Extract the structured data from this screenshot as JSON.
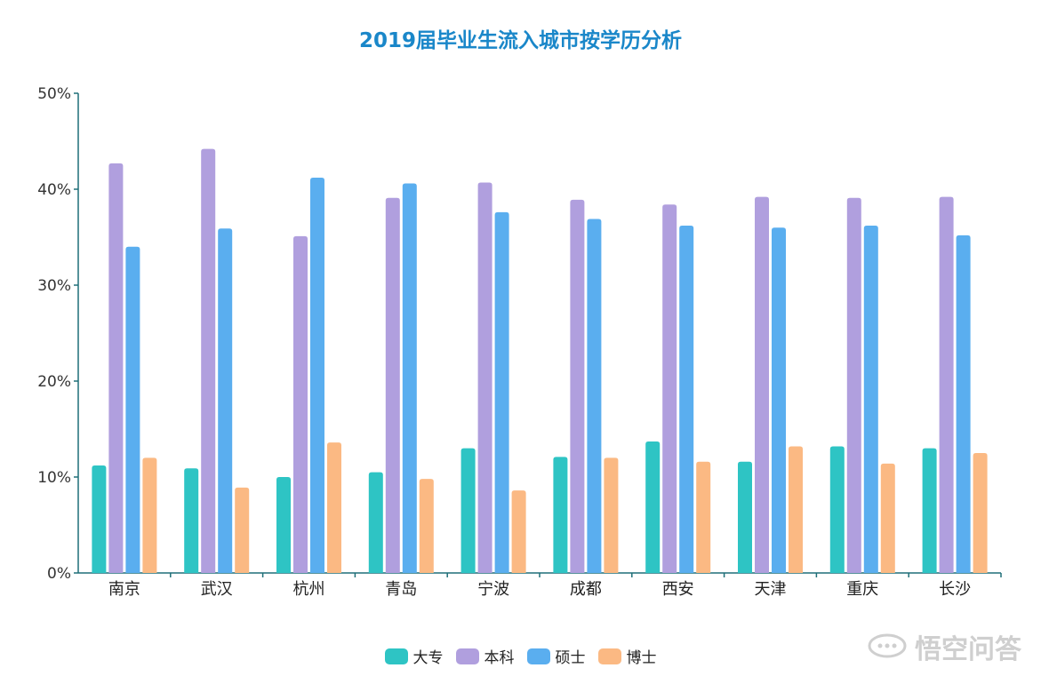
{
  "chart_data": {
    "type": "bar",
    "title": "2019届毕业生流入城市按学历分析",
    "categories": [
      "南京",
      "武汉",
      "杭州",
      "青岛",
      "宁波",
      "成都",
      "西安",
      "天津",
      "重庆",
      "长沙"
    ],
    "series": [
      {
        "name": "大专",
        "color": "#2ec4c4",
        "values": [
          11.2,
          10.9,
          10.0,
          10.5,
          13.0,
          12.1,
          13.7,
          11.6,
          13.2,
          13.0
        ]
      },
      {
        "name": "本科",
        "color": "#b09fde",
        "values": [
          42.7,
          44.2,
          35.1,
          39.1,
          40.7,
          38.9,
          38.4,
          39.2,
          39.1,
          39.2
        ]
      },
      {
        "name": "硕士",
        "color": "#5aaeef",
        "values": [
          34.0,
          35.9,
          41.2,
          40.6,
          37.6,
          36.9,
          36.2,
          36.0,
          36.2,
          35.2
        ]
      },
      {
        "name": "博士",
        "color": "#fbb983",
        "values": [
          12.0,
          8.9,
          13.6,
          9.8,
          8.6,
          12.0,
          11.6,
          13.2,
          11.4,
          12.5
        ]
      }
    ],
    "y_ticks": [
      "0%",
      "10%",
      "20%",
      "30%",
      "40%",
      "50%"
    ],
    "ylim": [
      0,
      50
    ],
    "grid": false,
    "legend_position": "bottom"
  },
  "watermark": {
    "text": "悟空问答",
    "icon": "speech-bubble-icon"
  }
}
